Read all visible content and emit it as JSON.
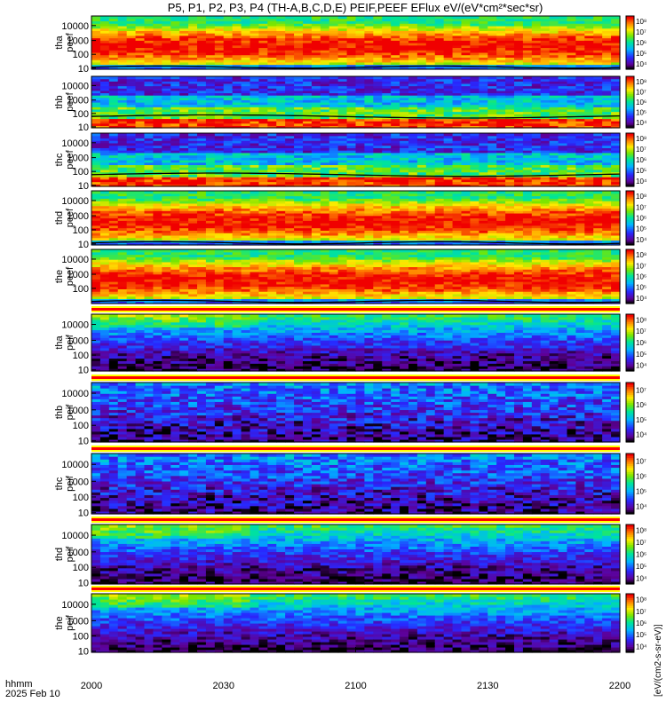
{
  "title": "P5, P1, P2, P3, P4 (TH-A,B,C,D,E) PEIF,PEEF EFlux eV/(eV*cm²*sec*sr)",
  "cbar_label": "[eV/(cm2-s-sr-eV)]",
  "time_axis": {
    "ticks": [
      "2000",
      "2030",
      "2100",
      "2130",
      "2200"
    ],
    "label_top": "hhmm",
    "label_bottom": "2025 Feb 10"
  },
  "chart_data": [
    {
      "type": "heatmap",
      "ylabel_top": "tha",
      "ylabel_bottom": "peef",
      "yticks": [
        "10",
        "100",
        "1000",
        "10000"
      ],
      "ylim": [
        10,
        25000
      ],
      "yscale": "log",
      "cbar_ticks": [
        "10^4",
        "10^5",
        "10^6",
        "10^7",
        "10^8"
      ],
      "profile": "ehot"
    },
    {
      "type": "heatmap",
      "ylabel_top": "thb",
      "ylabel_bottom": "peef",
      "yticks": [
        "10",
        "100",
        "1000",
        "10000"
      ],
      "ylim": [
        10,
        25000
      ],
      "yscale": "log",
      "cbar_ticks": [
        "10^4",
        "10^5",
        "10^6",
        "10^7",
        "10^8"
      ],
      "profile": "ecold"
    },
    {
      "type": "heatmap",
      "ylabel_top": "thc",
      "ylabel_bottom": "peef",
      "yticks": [
        "10",
        "100",
        "1000",
        "10000"
      ],
      "ylim": [
        10,
        25000
      ],
      "yscale": "log",
      "cbar_ticks": [
        "10^4",
        "10^5",
        "10^6",
        "10^7",
        "10^8"
      ],
      "profile": "ecold"
    },
    {
      "type": "heatmap",
      "ylabel_top": "thd",
      "ylabel_bottom": "peef",
      "yticks": [
        "10",
        "100",
        "1000",
        "10000"
      ],
      "ylim": [
        10,
        25000
      ],
      "yscale": "log",
      "cbar_ticks": [
        "10^4",
        "10^5",
        "10^6",
        "10^7",
        "10^8"
      ],
      "profile": "ehot"
    },
    {
      "type": "heatmap",
      "ylabel_top": "the",
      "ylabel_bottom": "peef",
      "yticks": [
        "100",
        "1000",
        "10000"
      ],
      "ylim": [
        10,
        25000
      ],
      "yscale": "log",
      "cbar_ticks": [
        "10^4",
        "10^5",
        "10^6",
        "10^7",
        "10^8"
      ],
      "profile": "ehot"
    },
    {
      "type": "heatmap",
      "ylabel_top": "tha",
      "ylabel_bottom": "peif",
      "yticks": [
        "10",
        "100",
        "1000",
        "10000"
      ],
      "ylim": [
        10,
        25000
      ],
      "yscale": "log",
      "cbar_ticks": [
        "10^4",
        "10^5",
        "10^6",
        "10^7",
        "10^8"
      ],
      "profile": "ion"
    },
    {
      "type": "heatmap",
      "ylabel_top": "thb",
      "ylabel_bottom": "peif",
      "yticks": [
        "10",
        "100",
        "1000",
        "10000"
      ],
      "ylim": [
        10,
        25000
      ],
      "yscale": "log",
      "cbar_ticks": [
        "10^4",
        "10^5",
        "10^6",
        "10^7"
      ],
      "profile": "ionquiet"
    },
    {
      "type": "heatmap",
      "ylabel_top": "thc",
      "ylabel_bottom": "peif",
      "yticks": [
        "10",
        "100",
        "1000",
        "10000"
      ],
      "ylim": [
        10,
        25000
      ],
      "yscale": "log",
      "cbar_ticks": [
        "10^4",
        "10^5",
        "10^6",
        "10^7"
      ],
      "profile": "ionquiet"
    },
    {
      "type": "heatmap",
      "ylabel_top": "thd",
      "ylabel_bottom": "peif",
      "yticks": [
        "10",
        "100",
        "1000",
        "10000"
      ],
      "ylim": [
        10,
        25000
      ],
      "yscale": "log",
      "cbar_ticks": [
        "10^4",
        "10^5",
        "10^6",
        "10^7",
        "10^8"
      ],
      "profile": "ion"
    },
    {
      "type": "heatmap",
      "ylabel_top": "the",
      "ylabel_bottom": "peif",
      "yticks": [
        "10",
        "100",
        "1000",
        "10000"
      ],
      "ylim": [
        10,
        25000
      ],
      "yscale": "log",
      "cbar_ticks": [
        "10^4",
        "10^5",
        "10^6",
        "10^7",
        "10^8"
      ],
      "profile": "ion"
    }
  ],
  "colors": {
    "ion_flag_bar": "#ff0000",
    "ion_flag_gap": "#ffff00"
  }
}
